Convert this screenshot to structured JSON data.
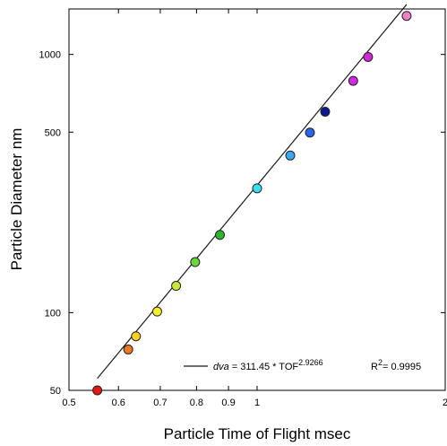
{
  "chart_data": {
    "type": "scatter",
    "title": "",
    "xlabel": "Particle Time of Flight msec",
    "ylabel": "Particle Diameter nm",
    "xscale": "log",
    "yscale": "log",
    "xlim": [
      0.5,
      2
    ],
    "ylim": [
      50,
      1500
    ],
    "grid": false,
    "x_ticks": [
      {
        "value": 0.5,
        "label": "0.5"
      },
      {
        "value": 0.6,
        "label": "0.6"
      },
      {
        "value": 0.7,
        "label": "0.7"
      },
      {
        "value": 0.8,
        "label": "0.8"
      },
      {
        "value": 0.9,
        "label": "0.9"
      },
      {
        "value": 1,
        "label": "1"
      },
      {
        "value": 2,
        "label": "2"
      }
    ],
    "y_ticks": [
      {
        "value": 50,
        "label": "50"
      },
      {
        "value": 100,
        "label": "100"
      },
      {
        "value": 500,
        "label": "500"
      },
      {
        "value": 1000,
        "label": "1000"
      }
    ],
    "points": [
      {
        "x": 0.555,
        "y": 50,
        "color": "#e8141c"
      },
      {
        "x": 0.622,
        "y": 72,
        "color": "#f07820"
      },
      {
        "x": 0.64,
        "y": 81,
        "color": "#f8d21e"
      },
      {
        "x": 0.692,
        "y": 101,
        "color": "#f4f02a"
      },
      {
        "x": 0.742,
        "y": 127,
        "color": "#c8e83a"
      },
      {
        "x": 0.796,
        "y": 157,
        "color": "#68d83a"
      },
      {
        "x": 0.872,
        "y": 200,
        "color": "#2cb82c"
      },
      {
        "x": 1.0,
        "y": 303,
        "color": "#38e0f4"
      },
      {
        "x": 1.13,
        "y": 406,
        "color": "#3aa8f0"
      },
      {
        "x": 1.215,
        "y": 498,
        "color": "#2a64e8"
      },
      {
        "x": 1.285,
        "y": 600,
        "color": "#0c1890"
      },
      {
        "x": 1.425,
        "y": 790,
        "color": "#d428e8"
      },
      {
        "x": 1.505,
        "y": 978,
        "color": "#d228d8"
      },
      {
        "x": 1.735,
        "y": 1410,
        "color": "#ee82c8"
      }
    ],
    "fit_line": {
      "x_range": [
        0.555,
        1.735
      ],
      "coefficient": 311.45,
      "exponent": 2.9266
    },
    "legend": {
      "placement": "bottom-right",
      "equation_var": "dva",
      "equation_mid": " = 311.45 * TOF",
      "equation_exp": "2.9266",
      "r2_label": "R",
      "r2_exp": "2",
      "r2_value": "= 0.9995"
    }
  }
}
